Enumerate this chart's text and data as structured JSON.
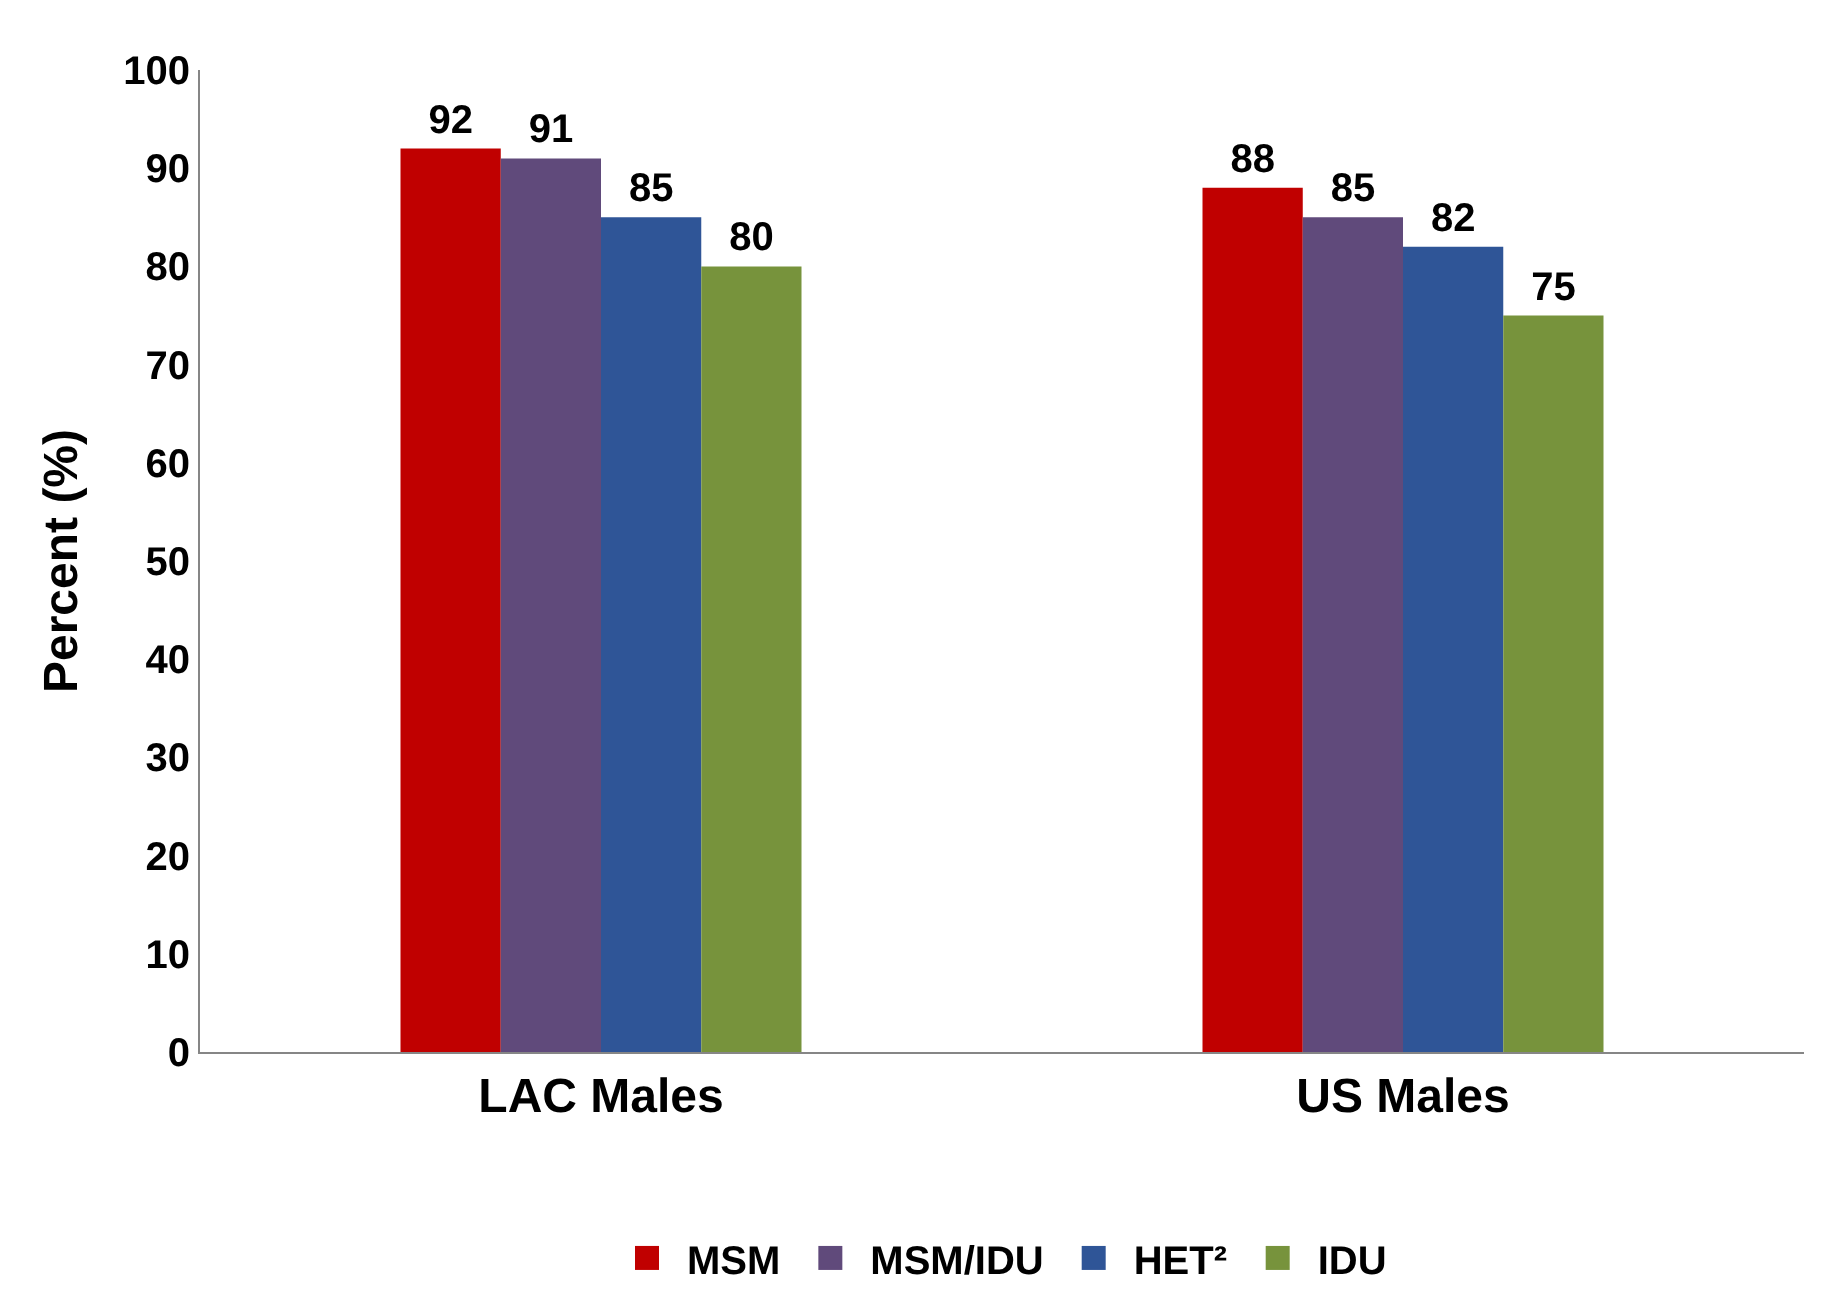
{
  "chart_data": {
    "type": "bar",
    "ylabel": "Percent (%)",
    "categories": [
      "LAC Males",
      "US Males"
    ],
    "series": [
      {
        "name": "MSM",
        "color": "#c00000",
        "values": [
          92,
          88
        ]
      },
      {
        "name": "MSM/IDU",
        "color": "#604a7b",
        "values": [
          91,
          85
        ]
      },
      {
        "name": "HET²",
        "color": "#2f5597",
        "values": [
          85,
          82
        ]
      },
      {
        "name": "IDU",
        "color": "#77933c",
        "values": [
          80,
          75
        ]
      }
    ],
    "ylim": [
      0,
      100
    ],
    "yticks": [
      0,
      10,
      20,
      30,
      40,
      50,
      60,
      70,
      80,
      90,
      100
    ],
    "legend": "bottom",
    "data_labels": true
  }
}
